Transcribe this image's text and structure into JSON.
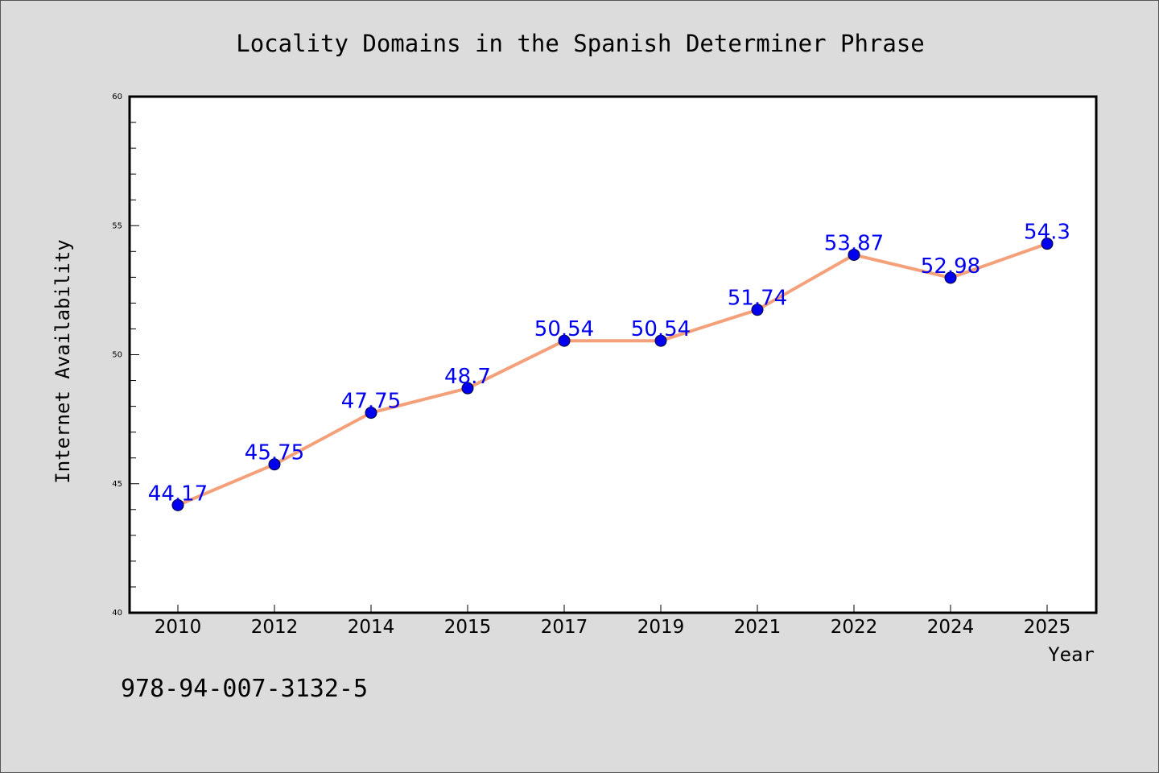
{
  "chart_data": {
    "type": "line",
    "title": "Locality Domains in the Spanish Determiner Phrase",
    "xlabel": "Year",
    "ylabel": "Internet Availability",
    "categories": [
      "2010",
      "2012",
      "2014",
      "2015",
      "2017",
      "2019",
      "2021",
      "2022",
      "2024",
      "2025"
    ],
    "series": [
      {
        "values": [
          44.17,
          45.75,
          47.75,
          48.7,
          50.54,
          50.54,
          51.74,
          53.87,
          52.98,
          54.3
        ],
        "labels": [
          "44.17",
          "45.75",
          "47.75",
          "48.7",
          "50.54",
          "50.54",
          "51.74",
          "53.87",
          "52.98",
          "54.3"
        ]
      }
    ],
    "ylim": [
      40,
      60
    ],
    "yticks": [
      "40",
      "45",
      "50",
      "55",
      "60"
    ],
    "grid": false,
    "line_color": "#f4a07a",
    "marker_color": "#0000ee",
    "label_color": "#0000ee"
  },
  "footer": {
    "isbn": "978-94-007-3132-5"
  }
}
